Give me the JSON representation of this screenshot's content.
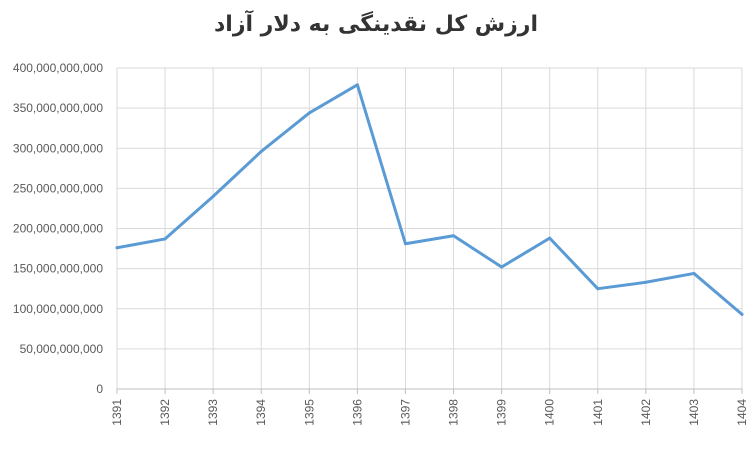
{
  "chart_data": {
    "type": "line",
    "title": "ارزش کل نقدینگی به دلار آزاد",
    "xlabel": "",
    "ylabel": "",
    "categories": [
      "1391",
      "1392",
      "1393",
      "1394",
      "1395",
      "1396",
      "1397",
      "1398",
      "1399",
      "1400",
      "1401",
      "1402",
      "1403",
      "1404"
    ],
    "series": [
      {
        "values": [
          176000000000,
          187000000000,
          240000000000,
          296000000000,
          344000000000,
          379000000000,
          181000000000,
          191000000000,
          152000000000,
          188000000000,
          125000000000,
          133000000000,
          144000000000,
          93000000000
        ],
        "color": "#5b9bd5"
      }
    ],
    "ylim": [
      0,
      400000000000
    ],
    "yticks": [
      "0",
      "50,000,000,000",
      "100,000,000,000",
      "150,000,000,000",
      "200,000,000,000",
      "250,000,000,000",
      "300,000,000,000",
      "350,000,000,000",
      "400,000,000,000"
    ],
    "grid": true,
    "legend": "none"
  }
}
